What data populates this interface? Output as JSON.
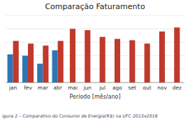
{
  "chart_data": {
    "type": "bar",
    "title": "Comparação Faturamento",
    "xlabel": "Período [mês/ano]",
    "annotations": [
      "igura 2 – Comparativo do Consumo de Energia(R$) na UFC 2015x2016"
    ],
    "categories": [
      "jan",
      "fev",
      "mar",
      "abr",
      "mai",
      "jun",
      "jul",
      "ago",
      "set",
      "out",
      "nov",
      "dez"
    ],
    "series": [
      {
        "color": "#2e75b6",
        "values": [
          0.42,
          0.4,
          0.28,
          0.48,
          null,
          null,
          null,
          null,
          null,
          null,
          null,
          null
        ]
      },
      {
        "color": "#c0392b",
        "values": [
          0.62,
          0.58,
          0.55,
          0.62,
          0.8,
          0.78,
          0.68,
          0.65,
          0.63,
          0.58,
          0.76,
          0.82
        ]
      }
    ],
    "ylim": [
      0,
      1.0
    ],
    "yticks": [
      0,
      0.2,
      0.4,
      0.6,
      0.8,
      1.0
    ],
    "grid": true,
    "tick_labels": "x"
  }
}
